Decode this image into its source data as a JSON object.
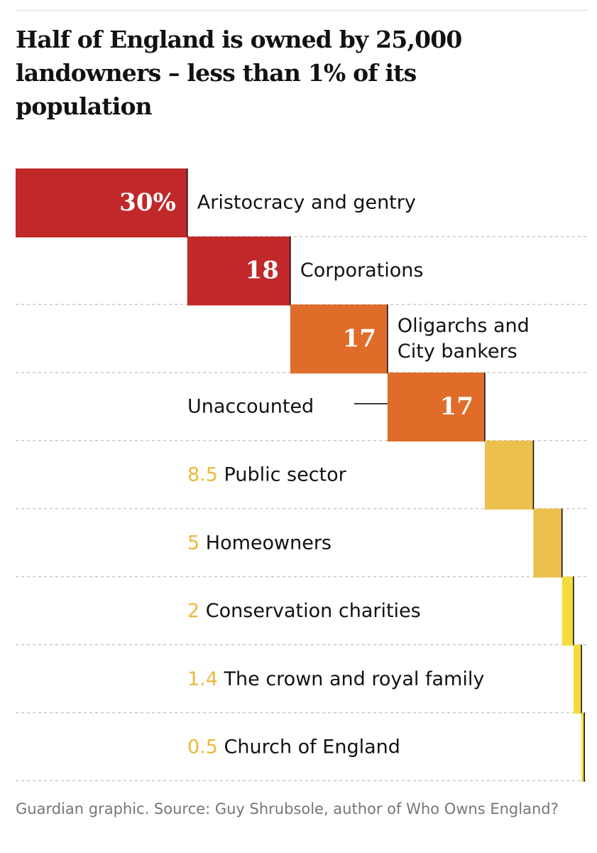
{
  "title": "Half of England is owned by 25,000 landowners – less than 1% of its population",
  "source": "Guardian graphic. Source: Guy Shrubsole, author of Who Owns England?",
  "colors": {
    "dark_red": "#c0282a",
    "orange": "#e06c29",
    "gold": "#ecc04f",
    "yellow": "#f5dc3c",
    "value_label": "#ecb93c",
    "text": "#121212",
    "divider": "#c8c8c8"
  },
  "chart_data": {
    "type": "bar",
    "subtype": "waterfall",
    "unit": "%",
    "total": 100,
    "categories": [
      "Aristocracy and gentry",
      "Corporations",
      "Oligarchs and City bankers",
      "Unaccounted",
      "Public sector",
      "Homeowners",
      "Conservation charities",
      "The crown and royal family",
      "Church of England"
    ],
    "values": [
      30,
      18,
      17,
      17,
      8.5,
      5,
      2,
      1.4,
      0.5
    ],
    "value_labels": [
      "30%",
      "18",
      "17",
      "17",
      "8.5",
      "5",
      "2",
      "1.4",
      "0.5"
    ],
    "label_lines": [
      [
        "Aristocracy and gentry"
      ],
      [
        "Corporations"
      ],
      [
        "Oligarchs and",
        "City bankers"
      ],
      [
        "Unaccounted"
      ],
      [
        "Public sector"
      ],
      [
        "Homeowners"
      ],
      [
        "Conservation charities"
      ],
      [
        "The crown and royal family"
      ],
      [
        "Church of England"
      ]
    ],
    "bar_colors": [
      "#c0282a",
      "#c0282a",
      "#e06c29",
      "#e06c29",
      "#ecc04f",
      "#ecc04f",
      "#f5dc3c",
      "#f5dc3c",
      "#f5dc3c"
    ],
    "legend": "none",
    "grid": false
  }
}
